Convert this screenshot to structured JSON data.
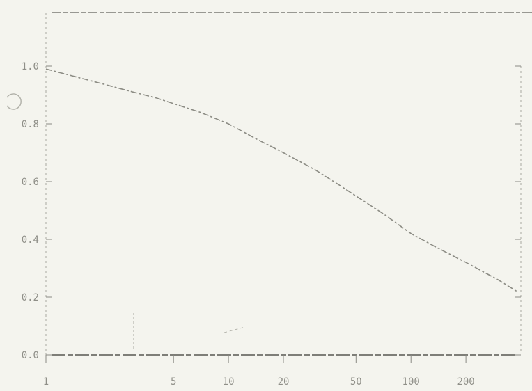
{
  "chart_data": {
    "type": "line",
    "title": "",
    "xlabel": "",
    "ylabel": "",
    "x_scale": "log",
    "x_ticks": [
      {
        "value": 1,
        "label": "1"
      },
      {
        "value": 5,
        "label": "5"
      },
      {
        "value": 10,
        "label": "10"
      },
      {
        "value": 20,
        "label": "20"
      },
      {
        "value": 50,
        "label": "50"
      },
      {
        "value": 100,
        "label": "100"
      },
      {
        "value": 200,
        "label": "200"
      }
    ],
    "y_ticks": [
      {
        "value": 0.0,
        "label": "0.0"
      },
      {
        "value": 0.2,
        "label": "0.2"
      },
      {
        "value": 0.4,
        "label": "0.4"
      },
      {
        "value": 0.6,
        "label": "0.6"
      },
      {
        "value": 0.8,
        "label": "0.8"
      },
      {
        "value": 1.0,
        "label": "1.0"
      }
    ],
    "xlim": [
      1,
      400
    ],
    "ylim": [
      0,
      1.0
    ],
    "grid": false,
    "series": [
      {
        "color": "#8c8c84",
        "x": [
          1,
          2,
          3,
          4,
          5,
          7,
          10,
          14,
          20,
          30,
          40,
          50,
          70,
          100,
          140,
          200,
          300,
          380
        ],
        "y": [
          0.99,
          0.94,
          0.91,
          0.89,
          0.87,
          0.84,
          0.8,
          0.75,
          0.7,
          0.64,
          0.59,
          0.55,
          0.49,
          0.42,
          0.37,
          0.32,
          0.26,
          0.22
        ]
      }
    ]
  }
}
